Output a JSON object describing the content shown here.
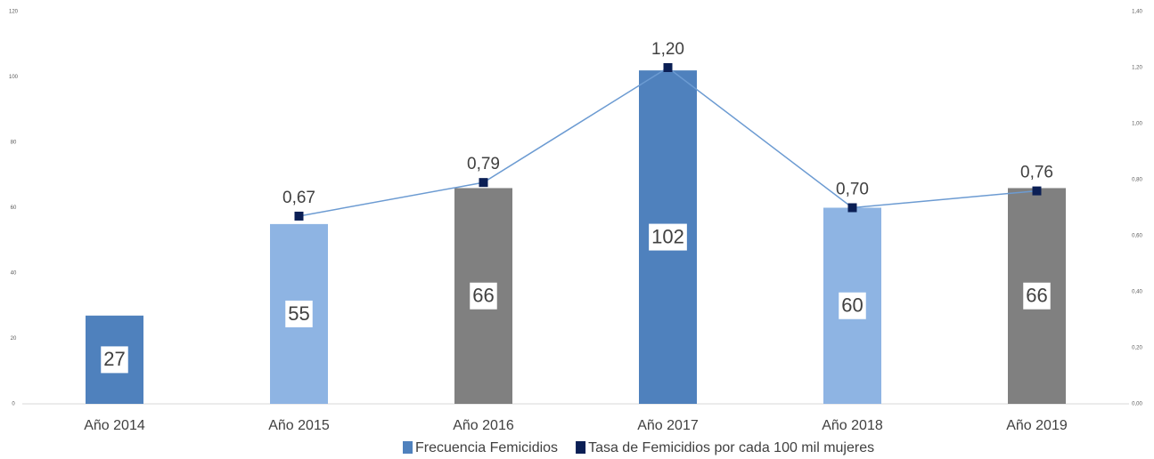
{
  "chart_data": {
    "type": "bar",
    "categories": [
      "Año 2014",
      "Año 2015",
      "Año 2016",
      "Año 2017",
      "Año 2018",
      "Año 2019"
    ],
    "series": [
      {
        "name": "Frecuencia Femicidios",
        "type": "bar",
        "color": "#4f81bd",
        "colors": [
          "#4f81bd",
          "#8eb4e3",
          "#808080",
          "#4f81bd",
          "#8eb4e3",
          "#808080"
        ],
        "values": [
          27,
          55,
          66,
          102,
          60,
          66
        ]
      },
      {
        "name": "Tasa de Femicidios por cada 100 mil mujeres",
        "type": "line",
        "axis": "y2",
        "color": "#6c9bd2",
        "marker_color": "#0b1f55",
        "values": [
          null,
          0.67,
          0.79,
          1.2,
          0.7,
          0.76
        ],
        "value_labels": [
          null,
          "0,67",
          "0,79",
          "1,20",
          "0,70",
          "0,76"
        ]
      }
    ],
    "ylim": [
      0,
      120
    ],
    "yticks": [
      0,
      20,
      40,
      60,
      80,
      100,
      120
    ],
    "y2lim": [
      0,
      1.4
    ],
    "y2ticks": [
      {
        "value": 0,
        "label": "0,00"
      },
      {
        "value": 0.2,
        "label": "0,20"
      },
      {
        "value": 0.4,
        "label": "0,40"
      },
      {
        "value": 0.6,
        "label": "0,60"
      },
      {
        "value": 0.8,
        "label": "0,80"
      },
      {
        "value": 1.0,
        "label": "1,00"
      },
      {
        "value": 1.2,
        "label": "1,20"
      },
      {
        "value": 1.4,
        "label": "1,40"
      }
    ],
    "legend": "bottom"
  }
}
